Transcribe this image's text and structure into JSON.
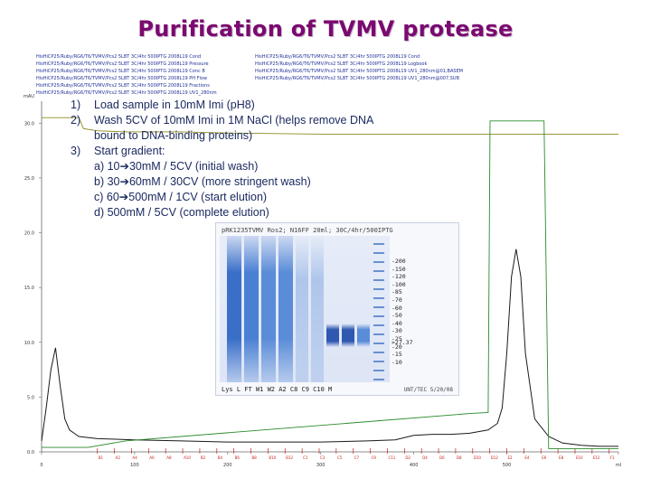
{
  "slide": {
    "title": "Purification of TVMV protease",
    "legend_rows": [
      "HisHiCP25/Ruby/RG6/T6/TVMV/Pcs2 5LBT 3C/4hr 500IPTG 2008L19 Cond",
      "HisHiCP25/Ruby/RG6/T6/TVMV/Pcs2 5LBT 3C/4hr 500IPTG 2008L19 Pressure",
      "HisHiCP25/Ruby/RG6/T6/TVMV/Pcs2 5LBT 3C/4hr 500IPTG 2008L19 Conc B",
      "HisHiCP25/Ruby/RG6/T6/TVMV/Pcs2 5LBT 3C/4hr 500IPTG 2008L19 PH Flow",
      "HisHiCP25/Ruby/RG6/T6/TVMV/Pcs2 5LBT 3C/4hr 500IPTG 2008L19 Fractions",
      "HisHiCP25/Ruby/RG6/T6/TVMV/Pcs2 5LBT 3C/4hr 500IPTG 2008L19 UV1_280nm"
    ],
    "legend_rows_right": [
      "HisHiCP25/Ruby/RG6/T6/TVMV/Pcs2 5LBT 3C/4hr 500IPTG 2008L19 Cond",
      "HisHiCP25/Ruby/RG6/T6/TVMV/Pcs2 5LBT 3C/4hr 500IPTG 2008L19 Logbook",
      "HisHiCP25/Ruby/RG6/T6/TVMV/Pcs2 5LBT 3C/4hr 500IPTG 2008L19 UV1_280nm@01,BASEM",
      "HisHiCP25/Ruby/RG6/T6/TVMV/Pcs2 5LBT 3C/4hr 500IPTG 2008L19 UV1_280nm@007,SUB"
    ]
  },
  "steps": [
    {
      "num": "1)",
      "text": "Load sample in 10mM Imi (pH8)"
    },
    {
      "num": "2)",
      "text": "Wash 5CV of 10mM Imi in 1M NaCl (helps remove DNA"
    },
    {
      "num": "",
      "text": "bound to DNA-binding proteins)"
    },
    {
      "num": "3)",
      "text": "Start gradient:"
    }
  ],
  "substeps": [
    "a) 10➔30mM / 5CV (initial wash)",
    "b) 30➔60mM / 30CV (more stringent wash)",
    "c) 60➔500mM / 1CV (start elution)",
    "d) 500mM / 5CV (complete elution)"
  ],
  "gel": {
    "caption": "pRK1235TVMV Ros2; N16FF 20ml; 30C/4hr/500IPTG",
    "markers": [
      "-200",
      "-150",
      "-120",
      "-100",
      "-85",
      "-70",
      "-60",
      "-50",
      "-40",
      "-30",
      "-25",
      "-20",
      "-15",
      "-10"
    ],
    "band_note": ">27.37",
    "lane_labels": "Lys L FT W1 W2 A2 C8 C9 C10 M",
    "date": "UNT/TEC 5/20/08"
  },
  "colors": {
    "title": "#7a0a70",
    "uv": "#1a1a1a",
    "conductivity": "#8a8a20",
    "conc_b": "#2a8a2a",
    "pressure": "#c04040",
    "fractions": "#cc2020"
  },
  "chart_data": {
    "type": "line",
    "ylabel": "mAU",
    "ylim": [
      0,
      32
    ],
    "xlim": [
      0,
      620
    ],
    "x_ticks": [
      "0",
      "100",
      "200",
      "300",
      "400",
      "500",
      "ml"
    ],
    "x_tick_values": [
      0,
      100,
      200,
      300,
      400,
      500,
      620
    ],
    "y_ticks": [
      "0.0",
      "5.0",
      "10.0",
      "15.0",
      "20.0",
      "25.0",
      "30.0"
    ],
    "y_tick_values": [
      0,
      5,
      10,
      15,
      20,
      25,
      30
    ],
    "fraction_labels": [
      "B1",
      "A2",
      "A4",
      "A6",
      "A8",
      "A10",
      "B2",
      "B4",
      "B6",
      "B8",
      "B10",
      "B12",
      "C1",
      "C3",
      "C5",
      "C7",
      "C9",
      "C11",
      "D2",
      "D4",
      "D6",
      "D8",
      "D10",
      "D12",
      "E2",
      "E4",
      "E6",
      "E8",
      "E10",
      "E12",
      "F1"
    ],
    "series": [
      {
        "key": "uv",
        "x": [
          0,
          5,
          10,
          15,
          20,
          25,
          30,
          40,
          60,
          100,
          150,
          200,
          250,
          300,
          350,
          380,
          400,
          420,
          440,
          460,
          480,
          490,
          495,
          500,
          505,
          510,
          515,
          520,
          530,
          545,
          560,
          580,
          600,
          620
        ],
        "y": [
          1.0,
          4.0,
          7.5,
          9.5,
          6.0,
          3.0,
          2.0,
          1.4,
          1.2,
          1.1,
          1.0,
          0.9,
          0.9,
          0.9,
          1.0,
          1.1,
          1.5,
          1.6,
          1.6,
          1.7,
          2.0,
          2.6,
          4.0,
          9.0,
          16.0,
          18.5,
          16.0,
          9.0,
          3.0,
          1.4,
          0.8,
          0.6,
          0.5,
          0.5
        ]
      },
      {
        "key": "conductivity",
        "x": [
          0,
          10,
          20,
          40,
          45,
          60,
          90,
          150,
          200,
          300,
          400,
          470,
          480,
          500,
          520,
          560,
          600,
          620
        ],
        "y": [
          30.5,
          30.5,
          30.5,
          30.5,
          29.5,
          29.3,
          29.2,
          29.2,
          29.1,
          29.0,
          29.0,
          29.0,
          29.0,
          29.0,
          29.0,
          29.0,
          29.0,
          29.0
        ]
      },
      {
        "key": "conc_b",
        "x": [
          0,
          50,
          90,
          460,
          480,
          482,
          500,
          540,
          545,
          620
        ],
        "y": [
          0.4,
          0.4,
          1.0,
          3.5,
          3.6,
          30.2,
          30.2,
          30.2,
          0.3,
          0.3
        ]
      }
    ]
  }
}
